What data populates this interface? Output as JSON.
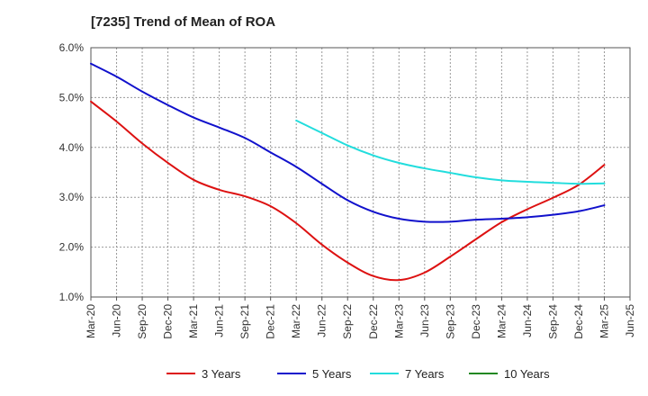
{
  "chart_data": {
    "type": "line",
    "title": "[7235]  Trend of Mean of ROA",
    "xlabel": "",
    "ylabel": "",
    "ylim": [
      1.0,
      6.0
    ],
    "yticks": [
      "1.0%",
      "2.0%",
      "3.0%",
      "4.0%",
      "5.0%",
      "6.0%"
    ],
    "grid": "dashed",
    "legend_position": "bottom",
    "categories": [
      "Mar-20",
      "Jun-20",
      "Sep-20",
      "Dec-20",
      "Mar-21",
      "Jun-21",
      "Sep-21",
      "Dec-21",
      "Mar-22",
      "Jun-22",
      "Sep-22",
      "Dec-22",
      "Mar-23",
      "Jun-23",
      "Sep-23",
      "Dec-23",
      "Mar-24",
      "Jun-24",
      "Sep-24",
      "Dec-24",
      "Mar-25",
      "Jun-25"
    ],
    "series": [
      {
        "name": "3 Years",
        "color": "#dd1111",
        "values": [
          4.92,
          4.52,
          4.08,
          3.69,
          3.35,
          3.15,
          3.02,
          2.82,
          2.48,
          2.05,
          1.69,
          1.42,
          1.34,
          1.49,
          1.81,
          2.16,
          2.5,
          2.76,
          2.99,
          3.25,
          3.65,
          null
        ]
      },
      {
        "name": "5 Years",
        "color": "#1111cc",
        "values": [
          5.68,
          5.42,
          5.12,
          4.85,
          4.6,
          4.4,
          4.19,
          3.9,
          3.61,
          3.27,
          2.94,
          2.71,
          2.57,
          2.51,
          2.51,
          2.55,
          2.57,
          2.6,
          2.65,
          2.72,
          2.84,
          null
        ]
      },
      {
        "name": "7 Years",
        "color": "#22dddd",
        "values": [
          null,
          null,
          null,
          null,
          null,
          null,
          null,
          null,
          4.54,
          4.29,
          4.04,
          3.84,
          3.69,
          3.58,
          3.49,
          3.4,
          3.34,
          3.31,
          3.29,
          3.27,
          3.28,
          null
        ]
      },
      {
        "name": "10 Years",
        "color": "#228822",
        "values": [
          null,
          null,
          null,
          null,
          null,
          null,
          null,
          null,
          null,
          null,
          null,
          null,
          null,
          null,
          null,
          null,
          null,
          null,
          null,
          null,
          null,
          null
        ]
      }
    ]
  }
}
